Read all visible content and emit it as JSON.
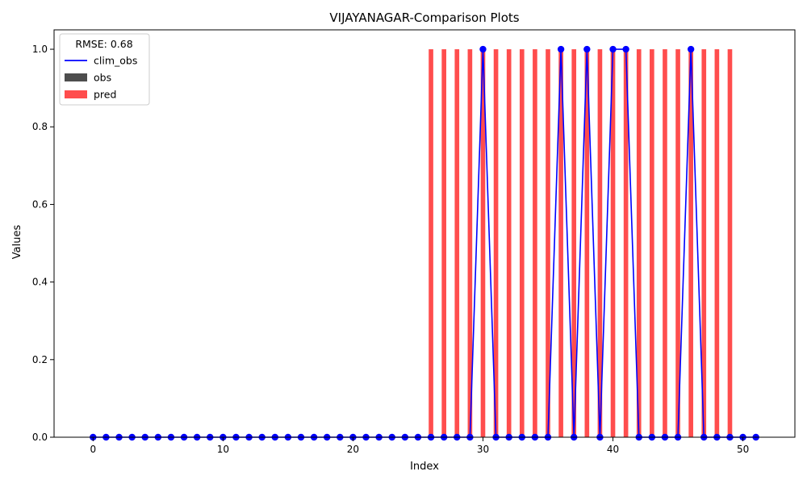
{
  "chart_data": {
    "type": "bar",
    "title": "VIJAYANAGAR-Comparison Plots",
    "xlabel": "Index",
    "ylabel": "Values",
    "xlim": [
      -3,
      54
    ],
    "ylim": [
      0,
      1.05
    ],
    "xticks": [
      0,
      10,
      20,
      30,
      40,
      50
    ],
    "yticks": [
      0.0,
      0.2,
      0.4,
      0.6,
      0.8,
      1.0
    ],
    "xtick_labels": [
      "0",
      "10",
      "20",
      "30",
      "40",
      "50"
    ],
    "ytick_labels": [
      "0.0",
      "0.2",
      "0.4",
      "0.6",
      "0.8",
      "1.0"
    ],
    "grid": false,
    "legend": {
      "title": "RMSE: 0.68",
      "placement": "top-left",
      "entries": [
        {
          "label": "clim_obs",
          "kind": "line",
          "color": "#0000ff"
        },
        {
          "label": "obs",
          "kind": "bar",
          "color": "#4d4d4d"
        },
        {
          "label": "pred",
          "kind": "bar",
          "color": "#ff4d4d"
        }
      ]
    },
    "series": [
      {
        "name": "clim_obs",
        "kind": "line",
        "color": "#0000ff",
        "x": [
          0,
          1,
          2,
          3,
          4,
          5,
          6,
          7,
          8,
          9,
          10,
          11,
          12,
          13,
          14,
          15,
          16,
          17,
          18,
          19,
          20,
          21,
          22,
          23,
          24,
          25,
          26,
          27,
          28,
          29,
          30,
          31,
          32,
          33,
          34,
          35,
          36,
          37,
          38,
          39,
          40,
          41,
          42,
          43,
          44,
          45,
          46,
          47,
          48,
          49,
          50,
          51
        ],
        "values": [
          0,
          0,
          0,
          0,
          0,
          0,
          0,
          0,
          0,
          0,
          0,
          0,
          0,
          0,
          0,
          0,
          0,
          0,
          0,
          0,
          0,
          0,
          0,
          0,
          0,
          0,
          0,
          0,
          0,
          0,
          1,
          0,
          0,
          0,
          0,
          0,
          1,
          0,
          1,
          0,
          1,
          1,
          0,
          0,
          0,
          0,
          1,
          0,
          0,
          0,
          0,
          0
        ]
      },
      {
        "name": "obs",
        "kind": "bar",
        "color": "#4d4d4d",
        "x": [
          0,
          1,
          2,
          3,
          4,
          5,
          6,
          7,
          8,
          9,
          10,
          11,
          12,
          13,
          14,
          15,
          16,
          17,
          18,
          19,
          20,
          21,
          22,
          23,
          24,
          25,
          26,
          27,
          28,
          29,
          30,
          31,
          32,
          33,
          34,
          35,
          36,
          37,
          38,
          39,
          40,
          41,
          42,
          43,
          44,
          45,
          46,
          47,
          48,
          49,
          50,
          51
        ],
        "values": [
          0,
          0,
          0,
          0,
          0,
          0,
          0,
          0,
          0,
          0,
          0,
          0,
          0,
          0,
          0,
          0,
          0,
          0,
          0,
          0,
          0,
          0,
          0,
          0,
          0,
          0,
          0,
          0,
          0,
          0,
          0,
          0,
          0,
          0,
          0,
          0,
          0,
          0,
          0,
          0,
          0,
          0,
          0,
          0,
          0,
          0,
          0,
          0,
          0,
          0,
          0,
          0
        ]
      },
      {
        "name": "pred",
        "kind": "bar",
        "color": "#ff4d4d",
        "x": [
          0,
          1,
          2,
          3,
          4,
          5,
          6,
          7,
          8,
          9,
          10,
          11,
          12,
          13,
          14,
          15,
          16,
          17,
          18,
          19,
          20,
          21,
          22,
          23,
          24,
          25,
          26,
          27,
          28,
          29,
          30,
          31,
          32,
          33,
          34,
          35,
          36,
          37,
          38,
          39,
          40,
          41,
          42,
          43,
          44,
          45,
          46,
          47,
          48,
          49,
          50,
          51
        ],
        "values": [
          0,
          0,
          0,
          0,
          0,
          0,
          0,
          0,
          0,
          0,
          0,
          0,
          0,
          0,
          0,
          0,
          0,
          0,
          0,
          0,
          0,
          0,
          0,
          0,
          0,
          0,
          1,
          1,
          1,
          1,
          1,
          1,
          1,
          1,
          1,
          1,
          1,
          1,
          1,
          1,
          1,
          1,
          1,
          1,
          1,
          1,
          1,
          1,
          1,
          1,
          0,
          0
        ]
      }
    ]
  }
}
